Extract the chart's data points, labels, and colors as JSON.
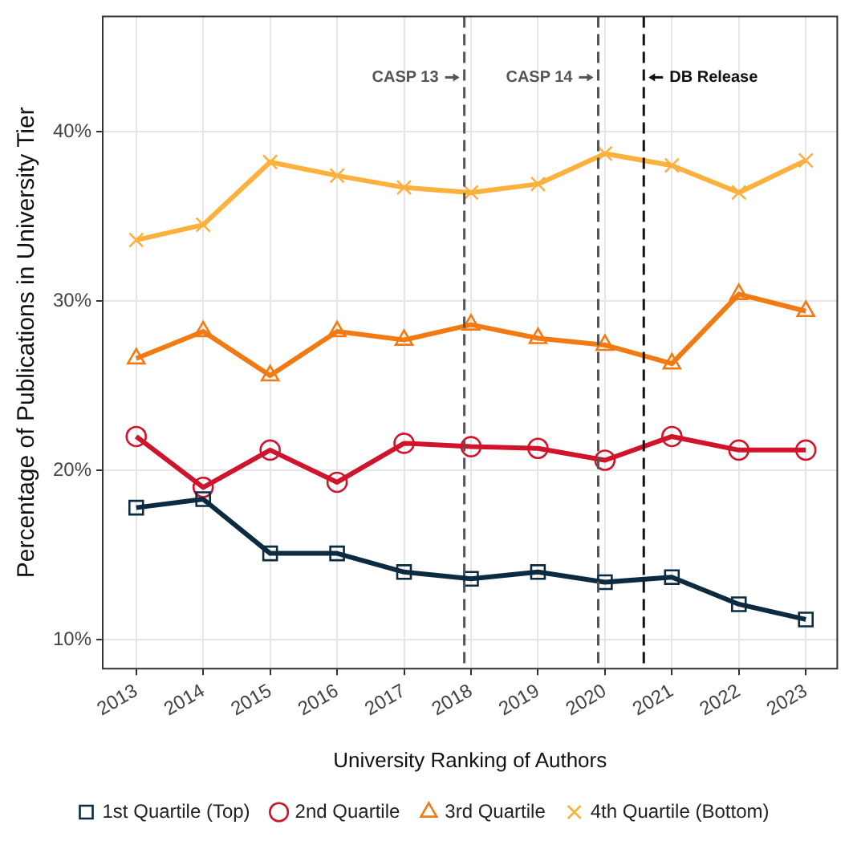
{
  "chart_data": {
    "type": "line",
    "ylabel": "Percentage of Publications in University Tier",
    "xlabel": "University Ranking of Authors",
    "x": [
      2013,
      2014,
      2015,
      2016,
      2017,
      2018,
      2019,
      2020,
      2021,
      2022,
      2023
    ],
    "xlim": [
      2012.5,
      2023.47
    ],
    "xticks": [
      2013,
      2014,
      2015,
      2016,
      2017,
      2018,
      2019,
      2020,
      2021,
      2022,
      2023
    ],
    "ylim": [
      8.3,
      46.8
    ],
    "yticks": [
      {
        "value": 10,
        "label": "10%"
      },
      {
        "value": 20,
        "label": "20%"
      },
      {
        "value": 30,
        "label": "30%"
      },
      {
        "value": 40,
        "label": "40%"
      }
    ],
    "grid": true,
    "legend": "bottom",
    "line_style": "solid",
    "series": [
      {
        "name": "1st Quartile (Top)",
        "color": "#0d2b40",
        "marker": "square",
        "values": [
          17.8,
          18.3,
          15.1,
          15.1,
          14.0,
          13.6,
          14.0,
          13.4,
          13.7,
          12.1,
          11.2
        ]
      },
      {
        "name": "2nd Quartile",
        "color": "#d0142c",
        "marker": "circle",
        "values": [
          22.0,
          19.0,
          21.2,
          19.3,
          21.6,
          21.4,
          21.3,
          20.6,
          22.0,
          21.2,
          21.2
        ]
      },
      {
        "name": "3rd Quartile",
        "color": "#f27a12",
        "marker": "triangle",
        "values": [
          26.6,
          28.2,
          25.6,
          28.2,
          27.7,
          28.6,
          27.8,
          27.4,
          26.3,
          30.4,
          29.4
        ]
      },
      {
        "name": "4th Quartile (Bottom)",
        "color": "#fbb13c",
        "marker": "cross",
        "values": [
          33.6,
          34.5,
          38.2,
          37.4,
          36.7,
          36.4,
          36.9,
          38.7,
          38.0,
          36.4,
          38.3
        ]
      }
    ],
    "ref_lines": [
      {
        "axis": "x",
        "value": 2017.9,
        "label": "CASP 13",
        "color": "#555555",
        "line_style": "dashed"
      },
      {
        "axis": "x",
        "value": 2019.9,
        "label": "CASP 14",
        "color": "#555555",
        "line_style": "dashed"
      },
      {
        "axis": "x",
        "value": 2020.58,
        "label": "DB Release",
        "color": "#111111",
        "line_style": "dashed"
      }
    ]
  }
}
